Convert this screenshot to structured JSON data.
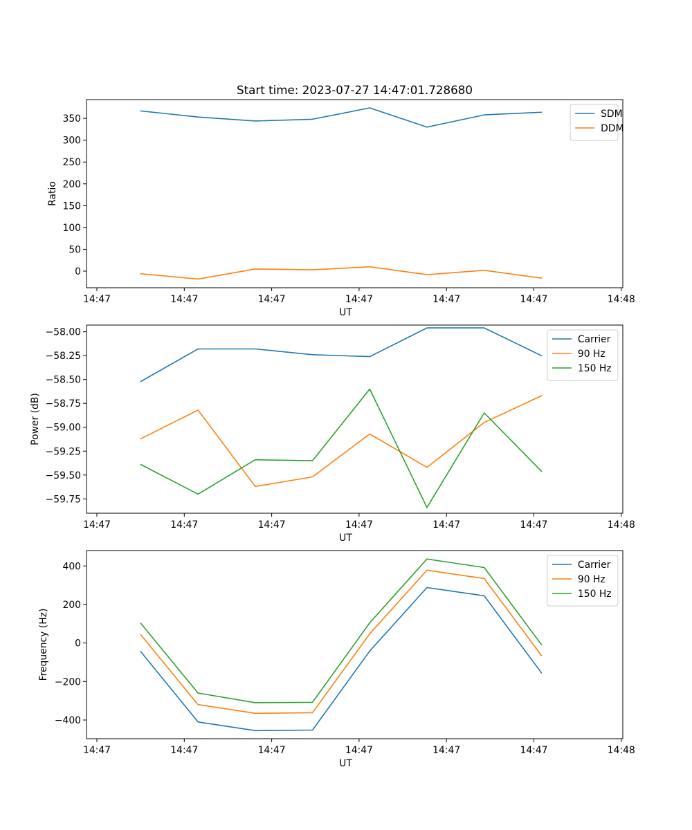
{
  "colors": {
    "blue": "#1f77b4",
    "orange": "#ff7f0e",
    "green": "#2ca02c",
    "axis": "#000000",
    "legend_border": "#cccccc"
  },
  "chart_data": [
    {
      "type": "line",
      "title": "Start time: 2023-07-27 14:47:01.728680",
      "xlabel": "UT",
      "ylabel": "Ratio",
      "x_tick_labels": [
        "14:47",
        "14:47",
        "14:47",
        "14:47",
        "14:47",
        "14:47",
        "14:48"
      ],
      "y_ticks": [
        0,
        50,
        100,
        150,
        200,
        250,
        300,
        350
      ],
      "y_tick_labels": [
        "0",
        "50",
        "100",
        "150",
        "200",
        "250",
        "300",
        "350"
      ],
      "xlim": [
        -0.75,
        8.55
      ],
      "ylim": [
        -38,
        393
      ],
      "x": [
        0,
        1,
        2,
        3,
        4,
        5,
        6,
        7
      ],
      "legend_position": "upper right",
      "series": [
        {
          "name": "SDM",
          "color": "#1f77b4",
          "values": [
            367,
            353,
            344,
            348,
            374,
            330,
            358,
            364
          ]
        },
        {
          "name": "DDM",
          "color": "#ff7f0e",
          "values": [
            -6,
            -18,
            5,
            3,
            10,
            -8,
            2,
            -16
          ]
        }
      ]
    },
    {
      "type": "line",
      "title": "",
      "xlabel": "UT",
      "ylabel": "Power (dB)",
      "x_tick_labels": [
        "14:47",
        "14:47",
        "14:47",
        "14:47",
        "14:47",
        "14:47",
        "14:48"
      ],
      "y_ticks": [
        -59.75,
        -59.5,
        -59.25,
        -59.0,
        -58.75,
        -58.5,
        -58.25,
        -58.0
      ],
      "y_tick_labels": [
        "−59.75",
        "−59.50",
        "−59.25",
        "−59.00",
        "−58.75",
        "−58.50",
        "−58.25",
        "−58.00"
      ],
      "xlim": [
        -0.75,
        8.55
      ],
      "ylim": [
        -59.9,
        -57.93
      ],
      "x": [
        0,
        1,
        2,
        3,
        4,
        5,
        6,
        7
      ],
      "legend_position": "upper right",
      "series": [
        {
          "name": "Carrier",
          "color": "#1f77b4",
          "values": [
            -58.52,
            -58.18,
            -58.18,
            -58.24,
            -58.26,
            -57.96,
            -57.96,
            -58.25
          ]
        },
        {
          "name": "90 Hz",
          "color": "#ff7f0e",
          "values": [
            -59.12,
            -58.82,
            -59.62,
            -59.52,
            -59.07,
            -59.42,
            -58.95,
            -58.67
          ]
        },
        {
          "name": "150 Hz",
          "color": "#2ca02c",
          "values": [
            -59.39,
            -59.7,
            -59.34,
            -59.35,
            -58.6,
            -59.84,
            -58.85,
            -59.46
          ]
        }
      ]
    },
    {
      "type": "line",
      "title": "",
      "xlabel": "UT",
      "ylabel": "Frequency (Hz)",
      "x_tick_labels": [
        "14:47",
        "14:47",
        "14:47",
        "14:47",
        "14:47",
        "14:47",
        "14:48"
      ],
      "y_ticks": [
        -400,
        -200,
        0,
        200,
        400
      ],
      "y_tick_labels": [
        "−400",
        "−200",
        "0",
        "200",
        "400"
      ],
      "xlim": [
        -0.75,
        8.55
      ],
      "ylim": [
        -497,
        480
      ],
      "x": [
        0,
        1,
        2,
        3,
        4,
        5,
        6,
        7
      ],
      "legend_position": "upper right",
      "series": [
        {
          "name": "Carrier",
          "color": "#1f77b4",
          "values": [
            -45,
            -410,
            -455,
            -452,
            -42,
            288,
            245,
            -155
          ]
        },
        {
          "name": "90 Hz",
          "color": "#ff7f0e",
          "values": [
            42,
            -320,
            -365,
            -362,
            48,
            378,
            335,
            -65
          ]
        },
        {
          "name": "150 Hz",
          "color": "#2ca02c",
          "values": [
            102,
            -260,
            -310,
            -308,
            105,
            436,
            392,
            -8
          ]
        }
      ]
    }
  ]
}
